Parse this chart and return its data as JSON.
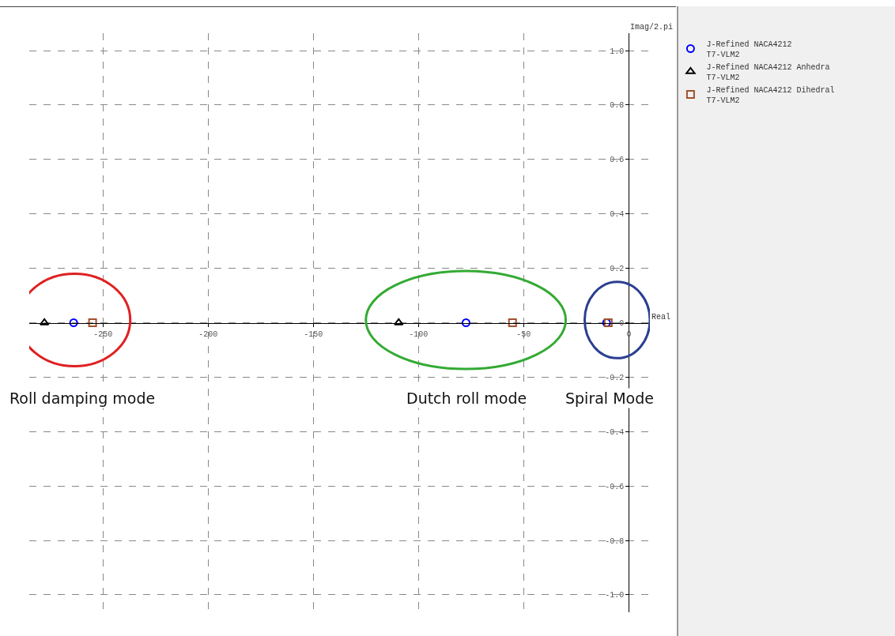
{
  "chart_data": {
    "type": "scatter",
    "xlabel": "Real",
    "ylabel": "Imag/2.pi",
    "xlim": [
      -285,
      10
    ],
    "ylim": [
      -1.064,
      1.064
    ],
    "xticks": [
      -250,
      -200,
      -150,
      -100,
      -50,
      0
    ],
    "yticks": [
      {
        "value": -1,
        "label": "-1.0"
      },
      -0.8,
      -0.6,
      -0.4,
      -0.2,
      0,
      0.2,
      0.4,
      0.6,
      0.8,
      {
        "value": 1,
        "label": "1.0"
      }
    ],
    "grid": true,
    "legend": "right",
    "series": [
      {
        "name": "J-Refined NACA4212\nT7-VLM2",
        "color": "#0000ff",
        "marker": "circle",
        "x": [
          -263.9,
          -77.4,
          -10.6
        ],
        "values": [
          0,
          0,
          0
        ]
      },
      {
        "name": "J-Refined NACA4212 Anhedra\nT7-VLM2",
        "color": "#000000",
        "marker": "triangle",
        "x": [
          -277.8,
          -109.4
        ],
        "values": [
          0,
          0
        ]
      },
      {
        "name": "J-Refined NACA4212 Dihedral\nT7-VLM2",
        "color": "#a0522d",
        "marker": "square",
        "x": [
          -254.9,
          -55.3,
          -9.8
        ],
        "values": [
          0,
          0,
          0
        ]
      }
    ],
    "annotations": [
      "Roll damping mode",
      "Dutch roll mode",
      "Spiral Mode"
    ]
  }
}
